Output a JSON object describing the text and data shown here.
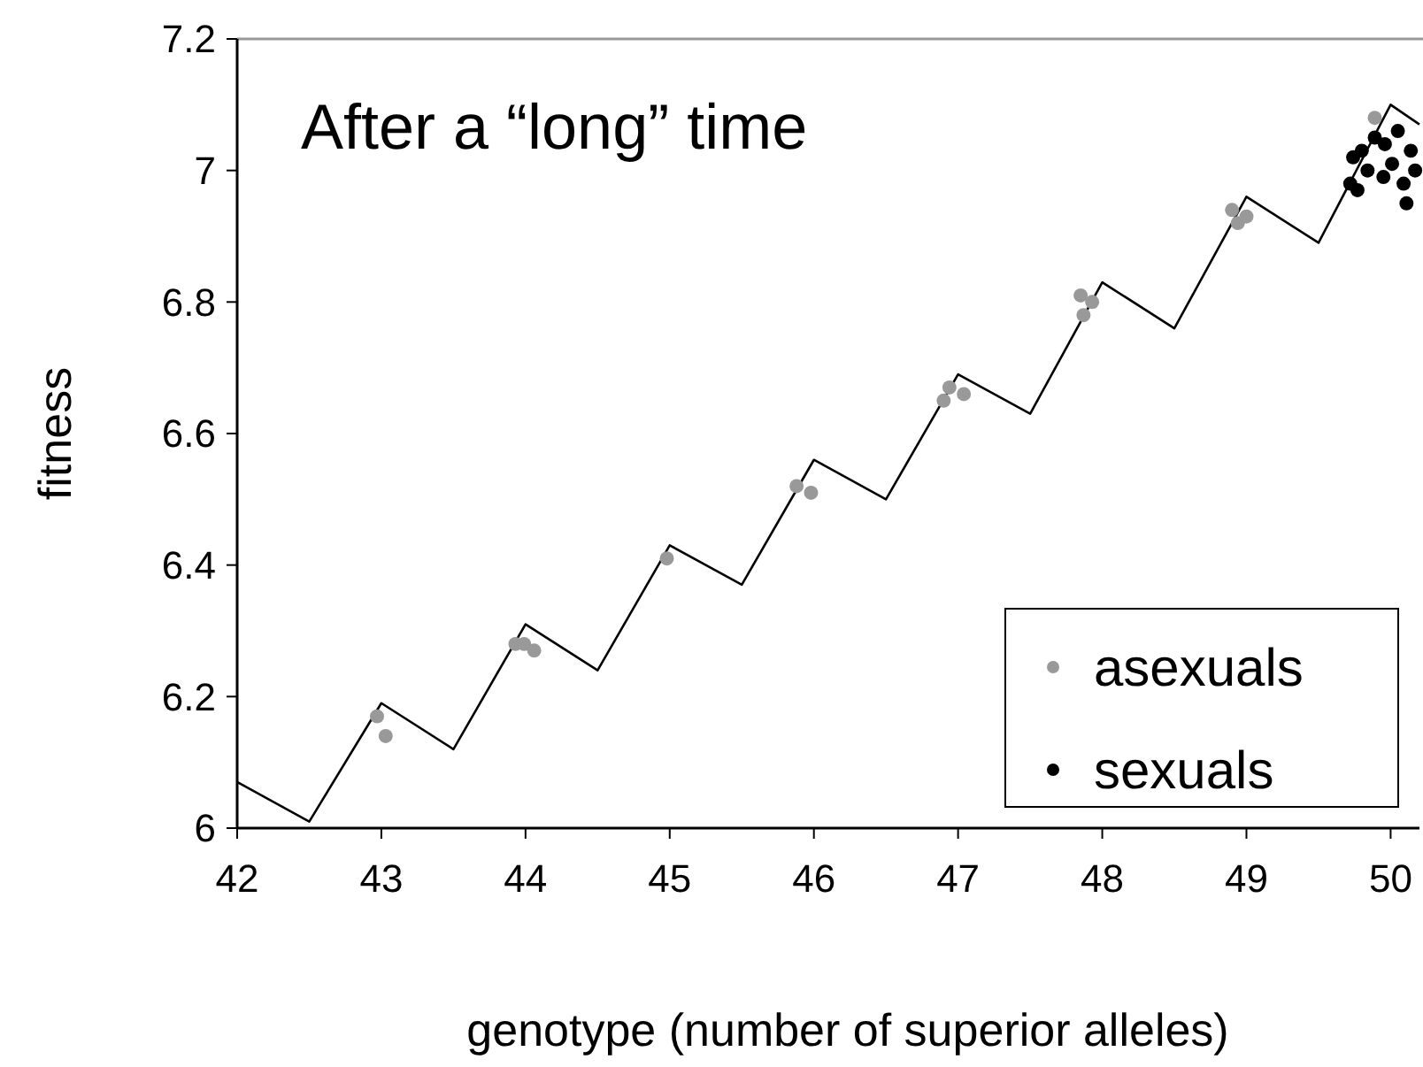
{
  "chart_data": {
    "type": "scatter",
    "title": "After a “long” time",
    "xlabel": "genotype (number of superior alleles)",
    "ylabel": "fitness",
    "xlim": [
      42,
      50.2
    ],
    "xticks": [
      42,
      43,
      44,
      45,
      46,
      47,
      48,
      49,
      50
    ],
    "ylim": [
      6,
      7.2
    ],
    "yticks": [
      6,
      6.2,
      6.4,
      6.6,
      6.8,
      7,
      7.2
    ],
    "grid": false,
    "legend": "bottom right",
    "marker": "circle",
    "series": [
      {
        "type": "line",
        "color": "#000000",
        "marker": "none",
        "x": [
          42,
          42.5,
          43,
          43.5,
          44,
          44.5,
          45,
          45.5,
          46,
          46.5,
          47,
          47.5,
          48,
          48.5,
          49,
          49.5,
          50,
          50.2
        ],
        "values": [
          6.07,
          6.01,
          6.19,
          6.12,
          6.31,
          6.24,
          6.43,
          6.37,
          6.56,
          6.5,
          6.69,
          6.63,
          6.83,
          6.76,
          6.96,
          6.89,
          7.1,
          7.07
        ]
      },
      {
        "name": "asexuals",
        "color": "#999999",
        "x": [
          42.97,
          43.03,
          43.93,
          43.99,
          44.06,
          44.98,
          45.88,
          45.98,
          46.88,
          46.94,
          47.04,
          46.9,
          47.85,
          47.87,
          47.93,
          48.9,
          48.94,
          49,
          49.89
        ],
        "values": [
          6.17,
          6.14,
          6.28,
          6.28,
          6.27,
          6.41,
          6.52,
          6.51,
          null,
          6.67,
          6.66,
          6.65,
          6.81,
          6.78,
          6.8,
          6.94,
          6.92,
          6.93,
          7.08
        ]
      },
      {
        "name": "sexuals",
        "color": "#000000",
        "x": [
          49.72,
          49.74,
          49.77,
          49.8,
          49.84,
          49.89,
          49.95,
          49.96,
          50.01,
          50.05,
          50.09,
          50.11,
          50.14,
          50.17
        ],
        "values": [
          6.98,
          7.02,
          6.97,
          7.03,
          7,
          7.05,
          6.99,
          7.04,
          7.01,
          7.06,
          6.98,
          6.95,
          7.03,
          7
        ]
      }
    ]
  }
}
